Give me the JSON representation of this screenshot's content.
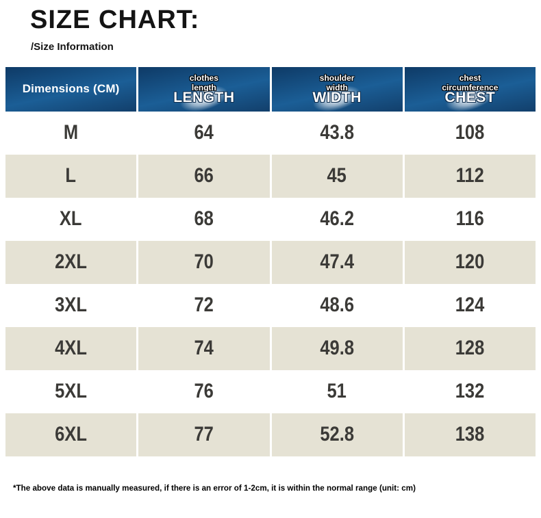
{
  "page": {
    "title": "SIZE CHART:",
    "subtitle": "/Size Information",
    "footnote": "*The above data is manually measured, if there is an error of 1-2cm, it is within the normal range (unit: cm)"
  },
  "colors": {
    "header_blue_top": "#0e3a66",
    "header_blue_mid": "#1b5e96",
    "header_blue_deep": "#123f6b",
    "header_text": "#ffffff",
    "row_alt_bg": "#e5e2d4",
    "data_text": "#3b3a37",
    "title_text": "#141414"
  },
  "chart_data": {
    "type": "table",
    "title": "SIZE CHART:",
    "subtitle": "/Size Information",
    "unit": "cm",
    "columns": [
      {
        "header": "Dimensions (CM)"
      },
      {
        "sub1": "clothes",
        "sub2": "length",
        "header": "LENGTH"
      },
      {
        "sub1": "shoulder",
        "sub2": "width",
        "header": "WIDTH"
      },
      {
        "sub1": "chest",
        "sub2": "circumference",
        "header": "CHEST"
      }
    ],
    "rows": [
      [
        "M",
        64,
        43.8,
        108
      ],
      [
        "L",
        66,
        45,
        112
      ],
      [
        "XL",
        68,
        46.2,
        116
      ],
      [
        "2XL",
        70,
        47.4,
        120
      ],
      [
        "3XL",
        72,
        48.6,
        124
      ],
      [
        "4XL",
        74,
        49.8,
        128
      ],
      [
        "5XL",
        76,
        51,
        132
      ],
      [
        "6XL",
        77,
        52.8,
        138
      ]
    ],
    "footnote": "*The above data is manually measured, if there is an error of 1-2cm, it is within the normal range (unit: cm)"
  }
}
